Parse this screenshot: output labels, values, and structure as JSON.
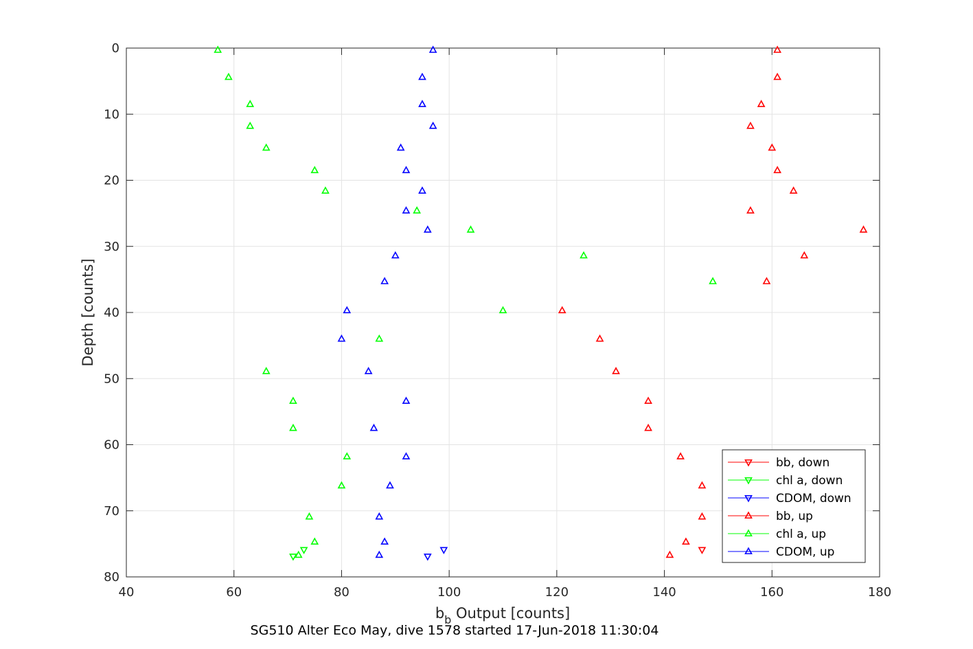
{
  "chart_data": {
    "type": "scatter",
    "title": "",
    "xlabel_main": "b",
    "xlabel_sub": "b",
    "xlabel_rest": " Output [counts]",
    "ylabel": "Depth [counts]",
    "caption": "SG510 Alter Eco May, dive 1578 started 17-Jun-2018 11:30:04",
    "xlim": [
      40,
      180
    ],
    "ylim": [
      0,
      80
    ],
    "y_reversed": true,
    "grid": true,
    "xticks": [
      40,
      60,
      80,
      100,
      120,
      140,
      160,
      180
    ],
    "yticks": [
      0,
      10,
      20,
      30,
      40,
      50,
      60,
      70,
      80
    ],
    "legend_position": "bottom-right",
    "series": [
      {
        "name": "bb, down",
        "color": "#ff0000",
        "marker": "triangle-down",
        "points": [
          [
            147,
            75.9
          ]
        ]
      },
      {
        "name": "chl a, down",
        "color": "#00ff00",
        "marker": "triangle-down",
        "points": [
          [
            71,
            76.9
          ],
          [
            73,
            75.9
          ]
        ]
      },
      {
        "name": "CDOM, down",
        "color": "#0000ff",
        "marker": "triangle-down",
        "points": [
          [
            96,
            76.9
          ],
          [
            99,
            75.9
          ]
        ]
      },
      {
        "name": "bb, up",
        "color": "#ff0000",
        "marker": "triangle-up",
        "points": [
          [
            161,
            0.3
          ],
          [
            161,
            4.4
          ],
          [
            158,
            8.5
          ],
          [
            156,
            11.8
          ],
          [
            160,
            15.1
          ],
          [
            161,
            18.5
          ],
          [
            164,
            21.6
          ],
          [
            156,
            24.6
          ],
          [
            177,
            27.5
          ],
          [
            166,
            31.4
          ],
          [
            159,
            35.3
          ],
          [
            121,
            39.7
          ],
          [
            128,
            44.0
          ],
          [
            131,
            48.9
          ],
          [
            137,
            53.4
          ],
          [
            137,
            57.5
          ],
          [
            143,
            61.8
          ],
          [
            147,
            66.2
          ],
          [
            147,
            70.9
          ],
          [
            144,
            74.7
          ],
          [
            141,
            76.7
          ]
        ]
      },
      {
        "name": "chl a, up",
        "color": "#00ff00",
        "marker": "triangle-up",
        "points": [
          [
            57,
            0.3
          ],
          [
            59,
            4.4
          ],
          [
            63,
            8.5
          ],
          [
            63,
            11.8
          ],
          [
            66,
            15.1
          ],
          [
            75,
            18.5
          ],
          [
            77,
            21.6
          ],
          [
            94,
            24.6
          ],
          [
            104,
            27.5
          ],
          [
            125,
            31.4
          ],
          [
            149,
            35.3
          ],
          [
            110,
            39.7
          ],
          [
            87,
            44.0
          ],
          [
            66,
            48.9
          ],
          [
            71,
            53.4
          ],
          [
            71,
            57.5
          ],
          [
            81,
            61.8
          ],
          [
            80,
            66.2
          ],
          [
            74,
            70.9
          ],
          [
            75,
            74.7
          ],
          [
            72,
            76.7
          ]
        ]
      },
      {
        "name": "CDOM, up",
        "color": "#0000ff",
        "marker": "triangle-up",
        "points": [
          [
            97,
            0.3
          ],
          [
            95,
            4.4
          ],
          [
            95,
            8.5
          ],
          [
            97,
            11.8
          ],
          [
            91,
            15.1
          ],
          [
            92,
            18.5
          ],
          [
            95,
            21.6
          ],
          [
            92,
            24.6
          ],
          [
            96,
            27.5
          ],
          [
            90,
            31.4
          ],
          [
            88,
            35.3
          ],
          [
            81,
            39.7
          ],
          [
            80,
            44.0
          ],
          [
            85,
            48.9
          ],
          [
            92,
            53.4
          ],
          [
            86,
            57.5
          ],
          [
            92,
            61.8
          ],
          [
            89,
            66.2
          ],
          [
            87,
            70.9
          ],
          [
            88,
            74.7
          ],
          [
            87,
            76.7
          ]
        ]
      }
    ]
  }
}
